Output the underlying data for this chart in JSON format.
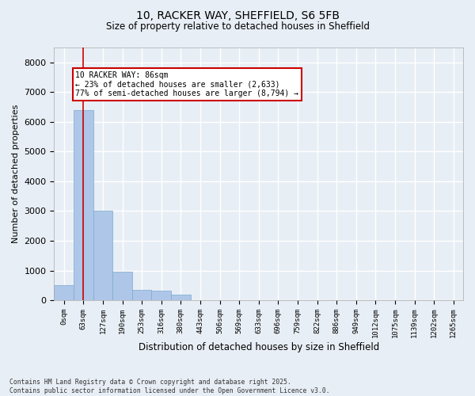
{
  "title_line1": "10, RACKER WAY, SHEFFIELD, S6 5FB",
  "title_line2": "Size of property relative to detached houses in Sheffield",
  "xlabel": "Distribution of detached houses by size in Sheffield",
  "ylabel": "Number of detached properties",
  "bar_color": "#aec6e8",
  "bar_edge_color": "#7aaad0",
  "background_color": "#e8eef5",
  "grid_color": "#ffffff",
  "annotation_box_color": "#cc0000",
  "property_line_color": "#cc0000",
  "property_bin_index": 1,
  "annotation_text": "10 RACKER WAY: 86sqm\n← 23% of detached houses are smaller (2,633)\n77% of semi-detached houses are larger (8,794) →",
  "footer_line1": "Contains HM Land Registry data © Crown copyright and database right 2025.",
  "footer_line2": "Contains public sector information licensed under the Open Government Licence v3.0.",
  "bin_labels": [
    "0sqm",
    "63sqm",
    "127sqm",
    "190sqm",
    "253sqm",
    "316sqm",
    "380sqm",
    "443sqm",
    "506sqm",
    "569sqm",
    "633sqm",
    "696sqm",
    "759sqm",
    "822sqm",
    "886sqm",
    "949sqm",
    "1012sqm",
    "1075sqm",
    "1139sqm",
    "1202sqm",
    "1265sqm"
  ],
  "bar_heights": [
    500,
    6400,
    3000,
    950,
    350,
    330,
    180,
    0,
    0,
    0,
    0,
    0,
    0,
    0,
    0,
    0,
    0,
    0,
    0,
    0,
    0
  ],
  "ylim": [
    0,
    8500
  ],
  "yticks": [
    0,
    1000,
    2000,
    3000,
    4000,
    5000,
    6000,
    7000,
    8000
  ]
}
